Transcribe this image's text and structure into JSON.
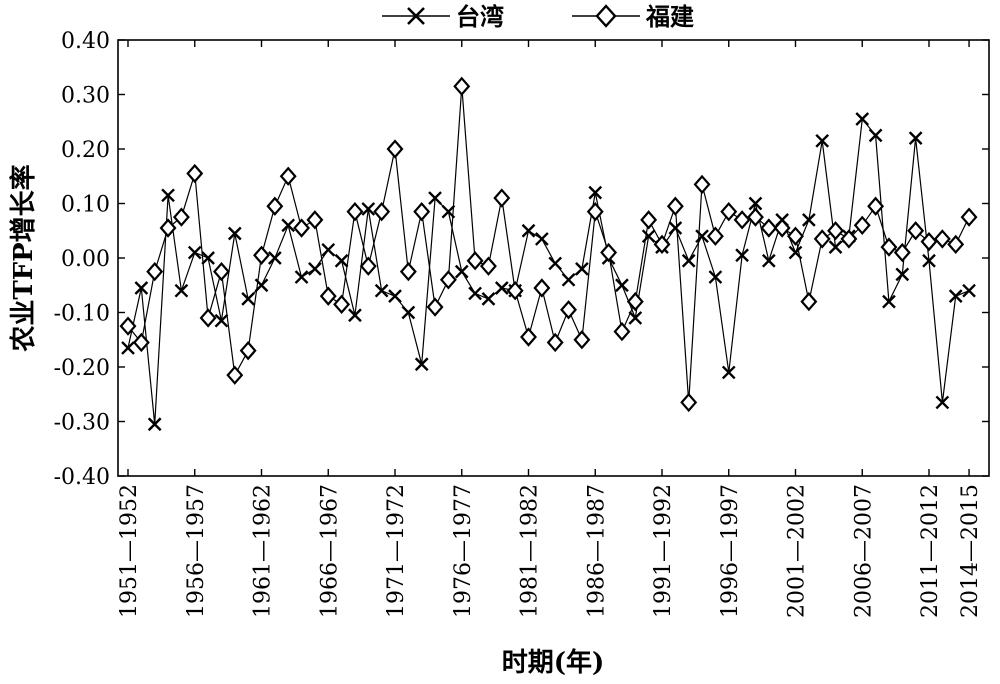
{
  "chart_data": {
    "type": "line",
    "xlabel": "时期(年)",
    "ylabel": "农业TFP增长率",
    "ylim": [
      -0.4,
      0.4
    ],
    "yticks": [
      "-0.40",
      "-0.30",
      "-0.20",
      "-0.10",
      "0.00",
      "0.10",
      "0.20",
      "0.30",
      "0.40"
    ],
    "x_tick_labels": [
      "1951—1952",
      "1956—1957",
      "1961—1962",
      "1966—1967",
      "1971—1972",
      "1976—1977",
      "1981—1982",
      "1986—1987",
      "1991—1992",
      "1996—1997",
      "2001—2002",
      "2006—2007",
      "2011—2012",
      "2014—2015"
    ],
    "categories": [
      "1951—1952",
      "1952—1953",
      "1953—1954",
      "1954—1955",
      "1955—1956",
      "1956—1957",
      "1957—1958",
      "1958—1959",
      "1959—1960",
      "1960—1961",
      "1961—1962",
      "1962—1963",
      "1963—1964",
      "1964—1965",
      "1965—1966",
      "1966—1967",
      "1967—1968",
      "1968—1969",
      "1969—1970",
      "1970—1971",
      "1971—1972",
      "1972—1973",
      "1973—1974",
      "1974—1975",
      "1975—1976",
      "1976—1977",
      "1977—1978",
      "1978—1979",
      "1979—1980",
      "1980—1981",
      "1981—1982",
      "1982—1983",
      "1983—1984",
      "1984—1985",
      "1985—1986",
      "1986—1987",
      "1987—1988",
      "1988—1989",
      "1989—1990",
      "1990—1991",
      "1991—1992",
      "1992—1993",
      "1993—1994",
      "1994—1995",
      "1995—1996",
      "1996—1997",
      "1997—1998",
      "1998—1999",
      "1999—2000",
      "2000—2001",
      "2001—2002",
      "2002—2003",
      "2003—2004",
      "2004—2005",
      "2005—2006",
      "2006—2007",
      "2007—2008",
      "2008—2009",
      "2009—2010",
      "2010—2011",
      "2011—2012",
      "2012—2013",
      "2013—2014",
      "2014—2015"
    ],
    "legend_position": "top",
    "grid": false,
    "series": [
      {
        "name": "台湾",
        "marker": "x",
        "values": [
          -0.165,
          -0.055,
          -0.305,
          0.115,
          -0.06,
          0.01,
          0.0,
          -0.115,
          0.045,
          -0.075,
          -0.05,
          0.0,
          0.06,
          -0.035,
          -0.02,
          0.015,
          -0.005,
          -0.105,
          0.09,
          -0.06,
          -0.07,
          -0.1,
          -0.195,
          0.11,
          0.085,
          -0.025,
          -0.065,
          -0.075,
          -0.055,
          -0.06,
          0.05,
          0.035,
          -0.01,
          -0.04,
          -0.02,
          0.12,
          0.0,
          -0.05,
          -0.11,
          0.04,
          0.02,
          0.055,
          -0.005,
          0.04,
          -0.035,
          -0.21,
          0.005,
          0.1,
          -0.005,
          0.07,
          0.01,
          0.07,
          0.215,
          0.02,
          0.04,
          0.255,
          0.225,
          -0.08,
          -0.03,
          0.22,
          -0.005,
          -0.265,
          -0.07,
          -0.06
        ]
      },
      {
        "name": "福建",
        "marker": "diamond",
        "values": [
          -0.125,
          -0.155,
          -0.025,
          0.055,
          0.075,
          0.155,
          -0.11,
          -0.025,
          -0.215,
          -0.17,
          0.005,
          0.095,
          0.15,
          0.055,
          0.07,
          -0.07,
          -0.085,
          0.085,
          -0.015,
          0.085,
          0.2,
          -0.025,
          0.085,
          -0.09,
          -0.04,
          0.315,
          -0.005,
          -0.015,
          0.11,
          -0.06,
          -0.145,
          -0.055,
          -0.155,
          -0.095,
          -0.15,
          0.085,
          0.01,
          -0.135,
          -0.08,
          0.07,
          0.025,
          0.095,
          -0.265,
          0.135,
          0.04,
          0.085,
          0.07,
          0.075,
          0.055,
          0.055,
          0.04,
          -0.08,
          0.035,
          0.05,
          0.035,
          0.06,
          0.095,
          0.02,
          0.01,
          0.05,
          0.03,
          0.035,
          0.025,
          0.075
        ]
      }
    ]
  }
}
